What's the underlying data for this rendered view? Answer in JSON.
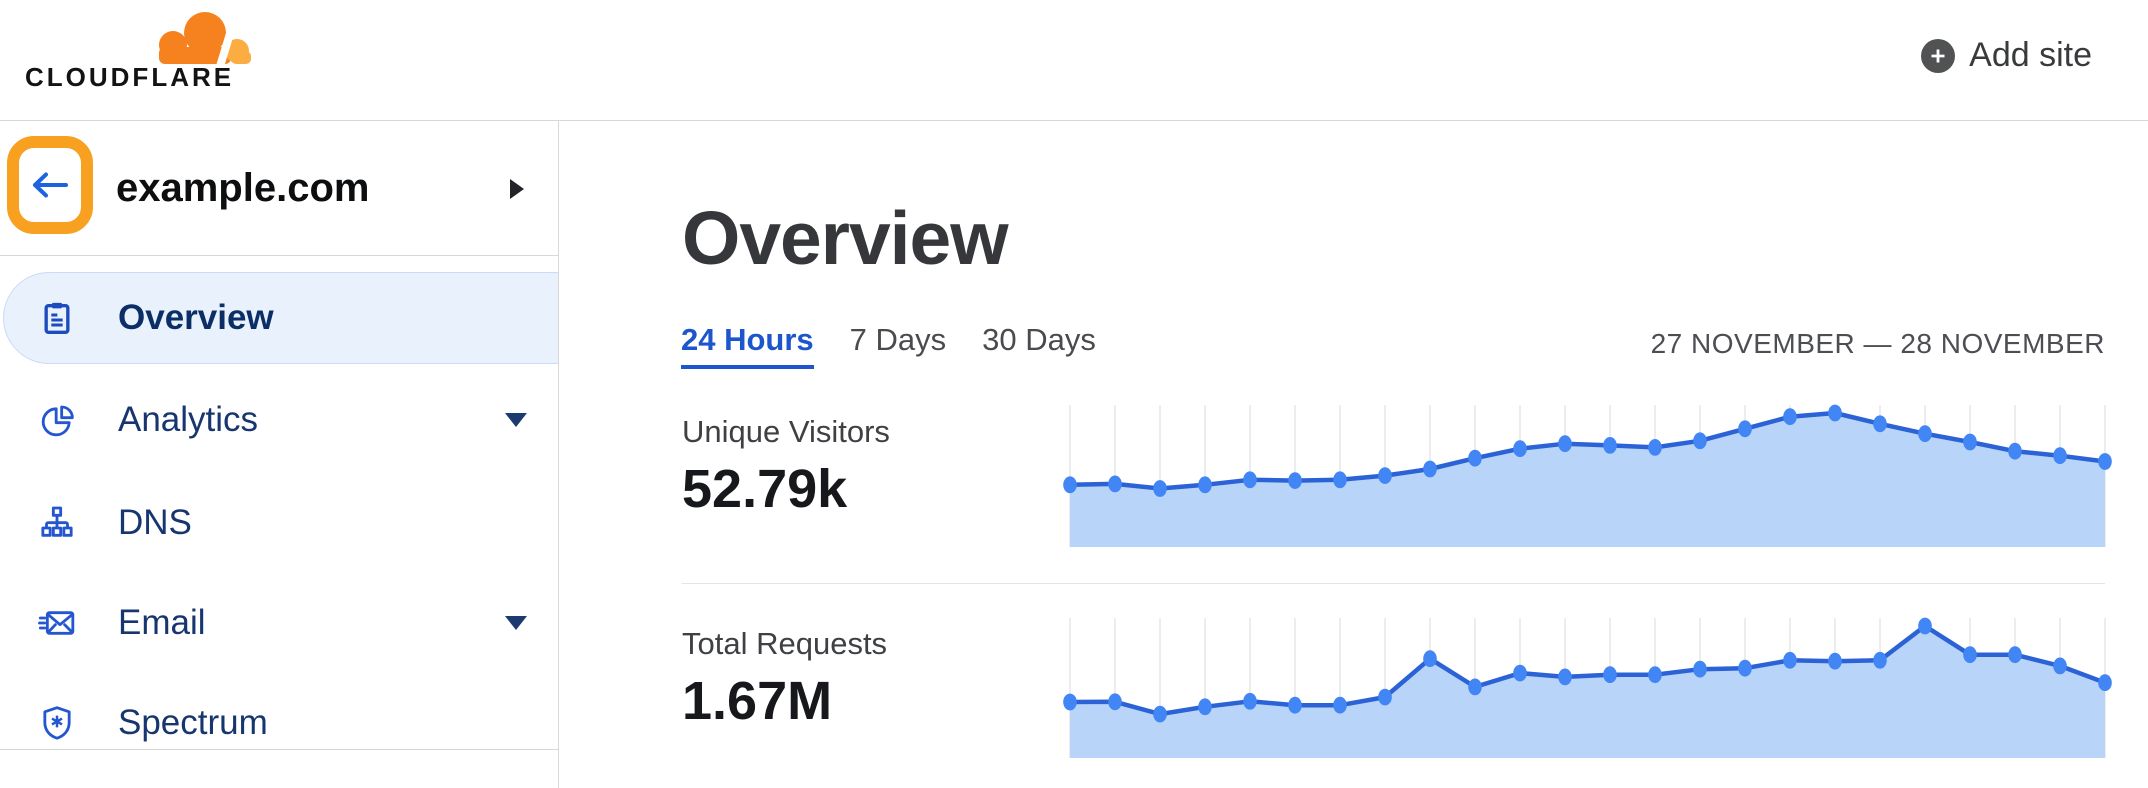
{
  "header": {
    "logo_text": "CLOUDFLARE",
    "add_site_label": "Add site"
  },
  "sidebar": {
    "site_name": "example.com",
    "items": [
      {
        "label": "Overview",
        "icon": "clipboard-icon",
        "active": true,
        "expandable": false
      },
      {
        "label": "Analytics",
        "icon": "pie-chart-icon",
        "active": false,
        "expandable": true
      },
      {
        "label": "DNS",
        "icon": "sitemap-icon",
        "active": false,
        "expandable": false
      },
      {
        "label": "Email",
        "icon": "envelope-icon",
        "active": false,
        "expandable": true
      },
      {
        "label": "Spectrum",
        "icon": "shield-icon",
        "active": false,
        "expandable": false
      }
    ]
  },
  "main": {
    "title": "Overview",
    "tabs": [
      {
        "label": "24 Hours",
        "active": true
      },
      {
        "label": "7 Days",
        "active": false
      },
      {
        "label": "30 Days",
        "active": false
      }
    ],
    "date_range": "27 NOVEMBER — 28 NOVEMBER"
  },
  "colors": {
    "brand_orange": "#F6821F",
    "brand_orange_light": "#FBAD41",
    "annotation_orange": "#F8A01F",
    "link_blue": "#1D55CC",
    "nav_text_blue": "#17366F",
    "icon_blue": "#2457CF",
    "active_item_bg": "#E9F1FD",
    "active_item_border": "#C9DBF6"
  },
  "chart_data": [
    {
      "type": "area",
      "title": "Unique Visitors",
      "total": "52.79k",
      "period": "24 Hours",
      "x_unit": "hour",
      "x": [
        0,
        1,
        2,
        3,
        4,
        5,
        6,
        7,
        8,
        9,
        10,
        11,
        12,
        13,
        14,
        15,
        16,
        17,
        18,
        19,
        20,
        21,
        22,
        23
      ],
      "values": [
        1500,
        1520,
        1410,
        1500,
        1620,
        1600,
        1620,
        1720,
        1880,
        2140,
        2370,
        2490,
        2450,
        2400,
        2560,
        2850,
        3140,
        3230,
        2970,
        2730,
        2530,
        2310,
        2200,
        2060
      ],
      "ylim": [
        0,
        3300
      ],
      "grid": "vertical-light",
      "legend": false,
      "colors": {
        "fill": "#B9D4F9",
        "line": "#2B63D6",
        "dot": "#4285F4",
        "grid": "#EDEDED"
      }
    },
    {
      "type": "area",
      "title": "Total Requests",
      "total": "1.67M",
      "period": "24 Hours",
      "x_unit": "hour",
      "x": [
        0,
        1,
        2,
        3,
        4,
        5,
        6,
        7,
        8,
        9,
        10,
        11,
        12,
        13,
        14,
        15,
        16,
        17,
        18,
        19,
        20,
        21,
        22,
        23
      ],
      "values": [
        49000,
        49100,
        38400,
        44800,
        49600,
        46200,
        46200,
        53200,
        86800,
        62200,
        74200,
        70900,
        72800,
        72800,
        77600,
        78500,
        85400,
        84600,
        85400,
        115400,
        90300,
        90300,
        80500,
        65800
      ],
      "ylim": [
        0,
        120000
      ],
      "grid": "vertical-light",
      "legend": false,
      "colors": {
        "fill": "#B9D4F9",
        "line": "#2B63D6",
        "dot": "#4285F4",
        "grid": "#EDEDED"
      }
    }
  ]
}
